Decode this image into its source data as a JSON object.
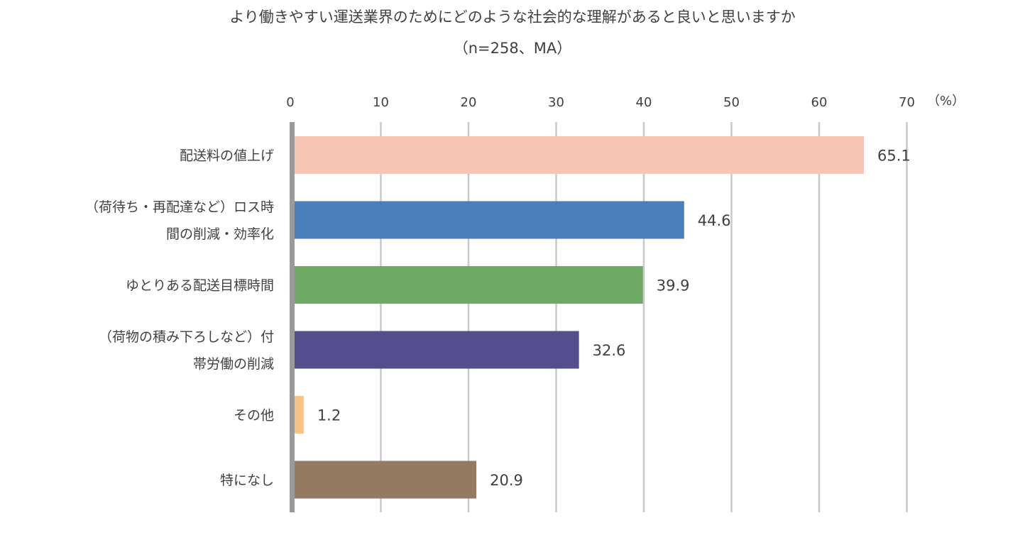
{
  "chart_data": {
    "type": "bar",
    "orientation": "horizontal",
    "title": "より働きやすい運送業界のためにどのような社会的な理解があると良いと思いますか",
    "subtitle": "（n=258、MA）",
    "unit": "（%）",
    "xlim": [
      0,
      70
    ],
    "xticks": [
      0,
      10,
      20,
      30,
      40,
      50,
      60,
      70
    ],
    "grid": true,
    "legend": "none",
    "categories": [
      [
        "配送料の値上げ"
      ],
      [
        "（荷待ち・再配達など）ロス時",
        "間の削減・効率化"
      ],
      [
        "ゆとりある配送目標時間"
      ],
      [
        "（荷物の積み下ろしなど）付",
        "帯労働の削減"
      ],
      [
        "その他"
      ],
      [
        "特になし"
      ]
    ],
    "values": [
      65.1,
      44.6,
      39.9,
      32.6,
      1.2,
      20.9
    ],
    "value_labels": [
      "65.1",
      "44.6",
      "39.9",
      "32.6",
      "1.2",
      "20.9"
    ],
    "colors": [
      "#f7c4b6",
      "#4a7fbd",
      "#6eaa64",
      "#544e8e",
      "#f9c384",
      "#957a62"
    ]
  }
}
